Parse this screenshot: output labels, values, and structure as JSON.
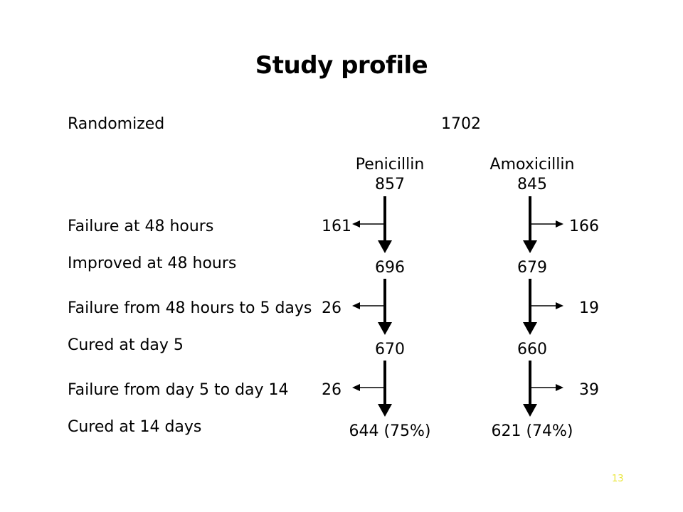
{
  "title": "Study profile",
  "rows": {
    "randomized": "Randomized",
    "failure_48h": "Failure at 48 hours",
    "improved_48h": "Improved at 48 hours",
    "failure_48h_5d": "Failure from 48 hours to 5 days",
    "cured_day5": "Cured at day 5",
    "failure_5_14": "Failure from day 5 to day 14",
    "cured_14d": "Cured at 14 days"
  },
  "total_randomized": "1702",
  "arms": [
    {
      "name": "Penicillin",
      "n": "857",
      "failure_48h": "161",
      "improved_48h": "696",
      "failure_48h_5d": "26",
      "cured_day5": "670",
      "failure_5_14": "26",
      "cured_14d": "644 (75%)"
    },
    {
      "name": "Amoxicillin",
      "n": "845",
      "failure_48h": "166",
      "improved_48h": "679",
      "failure_48h_5d": "19",
      "cured_day5": "660",
      "failure_5_14": "39",
      "cured_14d": "621 (74%)"
    }
  ],
  "page_number": "13",
  "colors": {
    "text": "#000000",
    "page_number": "#e9e63a",
    "background": "#ffffff"
  }
}
